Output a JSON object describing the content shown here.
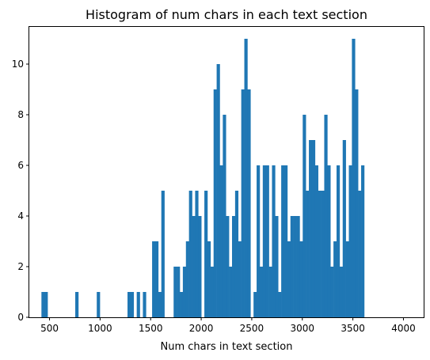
{
  "chart_data": {
    "type": "bar",
    "title": "Histogram of num chars in each text section",
    "xlabel": "Num chars in text section",
    "ylabel": "",
    "xlim": [
      300,
      4200
    ],
    "ylim": [
      0,
      11.5
    ],
    "grid": false,
    "color": "#1f77b4",
    "x_ticks": [
      500,
      1000,
      1500,
      2000,
      2500,
      3000,
      3500,
      4000
    ],
    "y_ticks": [
      0,
      2,
      4,
      6,
      8,
      10
    ],
    "bin_start": 420,
    "bin_width": 30.4,
    "counts": [
      1,
      1,
      0,
      0,
      0,
      0,
      0,
      0,
      0,
      0,
      0,
      1,
      0,
      0,
      0,
      0,
      0,
      0,
      1,
      0,
      0,
      0,
      0,
      0,
      0,
      0,
      0,
      0,
      1,
      1,
      0,
      1,
      0,
      1,
      0,
      0,
      3,
      3,
      1,
      5,
      0,
      0,
      0,
      2,
      2,
      1,
      2,
      3,
      5,
      4,
      5,
      4,
      0,
      5,
      3,
      2,
      9,
      10,
      6,
      8,
      4,
      2,
      4,
      5,
      3,
      9,
      11,
      9,
      0,
      1,
      6,
      2,
      6,
      6,
      2,
      6,
      4,
      1,
      6,
      6,
      3,
      4,
      4,
      4,
      3,
      8,
      5,
      7,
      7,
      6,
      5,
      5,
      8,
      6,
      2,
      3,
      6,
      2,
      7,
      3,
      6,
      11,
      9,
      5,
      6
    ]
  }
}
